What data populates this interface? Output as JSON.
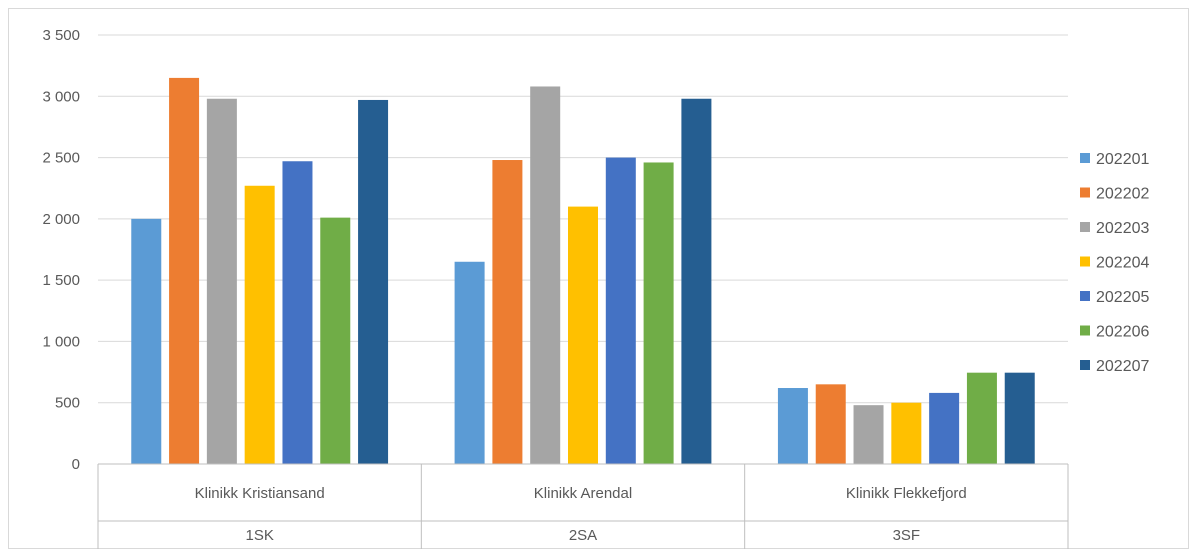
{
  "chart_data": {
    "type": "bar",
    "categories": [
      "Klinikk Kristiansand",
      "Klinikk Arendal",
      "Klinikk Flekkefjord"
    ],
    "groups": [
      "1SK",
      "2SA",
      "3SF"
    ],
    "ylim": [
      0,
      3500
    ],
    "yticks": [
      0,
      500,
      1000,
      1500,
      2000,
      2500,
      3000,
      3500
    ],
    "ytick_labels": [
      "0",
      "500",
      "1 000",
      "1 500",
      "2 000",
      "2 500",
      "3 000",
      "3 500"
    ],
    "grid": true,
    "legend_position": "right",
    "series": [
      {
        "name": "202201",
        "color": "#5b9bd5",
        "values": [
          2000,
          1650,
          620
        ]
      },
      {
        "name": "202202",
        "color": "#ed7d31",
        "values": [
          3150,
          2480,
          650
        ]
      },
      {
        "name": "202203",
        "color": "#a5a5a5",
        "values": [
          2980,
          3080,
          480
        ]
      },
      {
        "name": "202204",
        "color": "#ffc000",
        "values": [
          2270,
          2100,
          500
        ]
      },
      {
        "name": "202205",
        "color": "#4472c4",
        "values": [
          2470,
          2500,
          580
        ]
      },
      {
        "name": "202206",
        "color": "#70ad47",
        "values": [
          2010,
          2460,
          745
        ]
      },
      {
        "name": "202207",
        "color": "#255e91",
        "values": [
          2970,
          2980,
          745
        ]
      }
    ]
  }
}
